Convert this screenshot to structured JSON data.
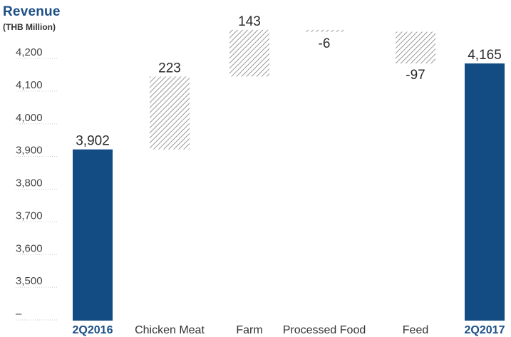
{
  "chart_data": {
    "type": "bar",
    "variant": "waterfall",
    "title": "Revenue",
    "subtitle": "(THB Million)",
    "categories": [
      "2Q2016",
      "Chicken Meat",
      "Farm",
      "Processed Food",
      "Feed",
      "2Q2017"
    ],
    "values": [
      3902,
      223,
      143,
      -6,
      -97,
      4165
    ],
    "data_labels": [
      "3,902",
      "223",
      "143",
      "-6",
      "-97",
      "4,165"
    ],
    "bar_kinds": [
      "total",
      "change",
      "change",
      "change",
      "change",
      "total"
    ],
    "y_ticks": [
      {
        "value": 3400,
        "label": "–"
      },
      {
        "value": 3500,
        "label": "3,500"
      },
      {
        "value": 3600,
        "label": "3,600"
      },
      {
        "value": 3700,
        "label": "3,700"
      },
      {
        "value": 3800,
        "label": "3,800"
      },
      {
        "value": 3900,
        "label": "3,900"
      },
      {
        "value": 4000,
        "label": "4,000"
      },
      {
        "value": 4100,
        "label": "4,100"
      },
      {
        "value": 4200,
        "label": "4,200"
      }
    ],
    "ylim": [
      3400,
      4200
    ],
    "grid": false,
    "colors": {
      "total_bar": "#124c83",
      "change_hatch": "#9a9a9a",
      "title": "#1c4f86"
    }
  }
}
